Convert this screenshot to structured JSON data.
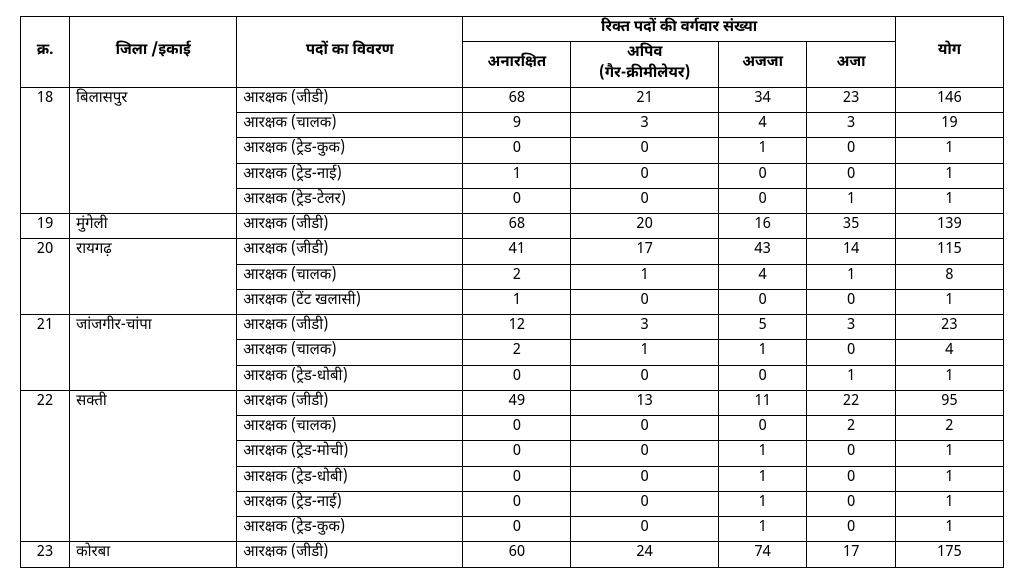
{
  "headers": {
    "sno": "क्र.",
    "district": "जिला /इकाई",
    "post": "पदों का विवरण",
    "group": "रिक्त पदों की वर्गवार संख्या",
    "unreserved": "अनारक्षित",
    "obc": "अपिव\n(गैर-क्रीमीलेयर)",
    "st": "अजजा",
    "sc": "अजा",
    "total": "योग"
  },
  "blocks": [
    {
      "sno": "18",
      "district": "बिलासपुर",
      "rows": [
        {
          "post": "आरक्षक (जीडी)",
          "un": 68,
          "obc": 21,
          "st": 34,
          "sc": 23,
          "total": 146
        },
        {
          "post": "आरक्षक (चालक)",
          "un": 9,
          "obc": 3,
          "st": 4,
          "sc": 3,
          "total": 19
        },
        {
          "post": "आरक्षक (ट्रेड-कुक)",
          "un": 0,
          "obc": 0,
          "st": 1,
          "sc": 0,
          "total": 1
        },
        {
          "post": "आरक्षक (ट्रेड-नाई)",
          "un": 1,
          "obc": 0,
          "st": 0,
          "sc": 0,
          "total": 1
        },
        {
          "post": "आरक्षक (ट्रेड-टेलर)",
          "un": 0,
          "obc": 0,
          "st": 0,
          "sc": 1,
          "total": 1
        }
      ]
    },
    {
      "sno": "19",
      "district": "मुंगेली",
      "rows": [
        {
          "post": "आरक्षक (जीडी)",
          "un": 68,
          "obc": 20,
          "st": 16,
          "sc": 35,
          "total": 139
        }
      ]
    },
    {
      "sno": "20",
      "district": "रायगढ़",
      "rows": [
        {
          "post": "आरक्षक (जीडी)",
          "un": 41,
          "obc": 17,
          "st": 43,
          "sc": 14,
          "total": 115
        },
        {
          "post": "आरक्षक (चालक)",
          "un": 2,
          "obc": 1,
          "st": 4,
          "sc": 1,
          "total": 8
        },
        {
          "post": "आरक्षक (टेंट खलासी)",
          "un": 1,
          "obc": 0,
          "st": 0,
          "sc": 0,
          "total": 1
        }
      ]
    },
    {
      "sno": "21",
      "district": "जांजगीर-चांपा",
      "rows": [
        {
          "post": "आरक्षक (जीडी)",
          "un": 12,
          "obc": 3,
          "st": 5,
          "sc": 3,
          "total": 23
        },
        {
          "post": "आरक्षक (चालक)",
          "un": 2,
          "obc": 1,
          "st": 1,
          "sc": 0,
          "total": 4
        },
        {
          "post": "आरक्षक (ट्रेड-धोबी)",
          "un": 0,
          "obc": 0,
          "st": 0,
          "sc": 1,
          "total": 1
        }
      ]
    },
    {
      "sno": "22",
      "district": "सक्ती",
      "rows": [
        {
          "post": "आरक्षक (जीडी)",
          "un": 49,
          "obc": 13,
          "st": 11,
          "sc": 22,
          "total": 95
        },
        {
          "post": "आरक्षक (चालक)",
          "un": 0,
          "obc": 0,
          "st": 0,
          "sc": 2,
          "total": 2
        },
        {
          "post": "आरक्षक (ट्रेड-मोची)",
          "un": 0,
          "obc": 0,
          "st": 1,
          "sc": 0,
          "total": 1
        },
        {
          "post": "आरक्षक (ट्रेड-धोबी)",
          "un": 0,
          "obc": 0,
          "st": 1,
          "sc": 0,
          "total": 1
        },
        {
          "post": "आरक्षक (ट्रेड-नाई)",
          "un": 0,
          "obc": 0,
          "st": 1,
          "sc": 0,
          "total": 1
        },
        {
          "post": "आरक्षक (ट्रेड-कुक)",
          "un": 0,
          "obc": 0,
          "st": 1,
          "sc": 0,
          "total": 1
        }
      ]
    },
    {
      "sno": "23",
      "district": "कोरबा",
      "rows": [
        {
          "post": "आरक्षक (जीडी)",
          "un": 60,
          "obc": 24,
          "st": 74,
          "sc": 17,
          "total": 175
        }
      ]
    }
  ]
}
